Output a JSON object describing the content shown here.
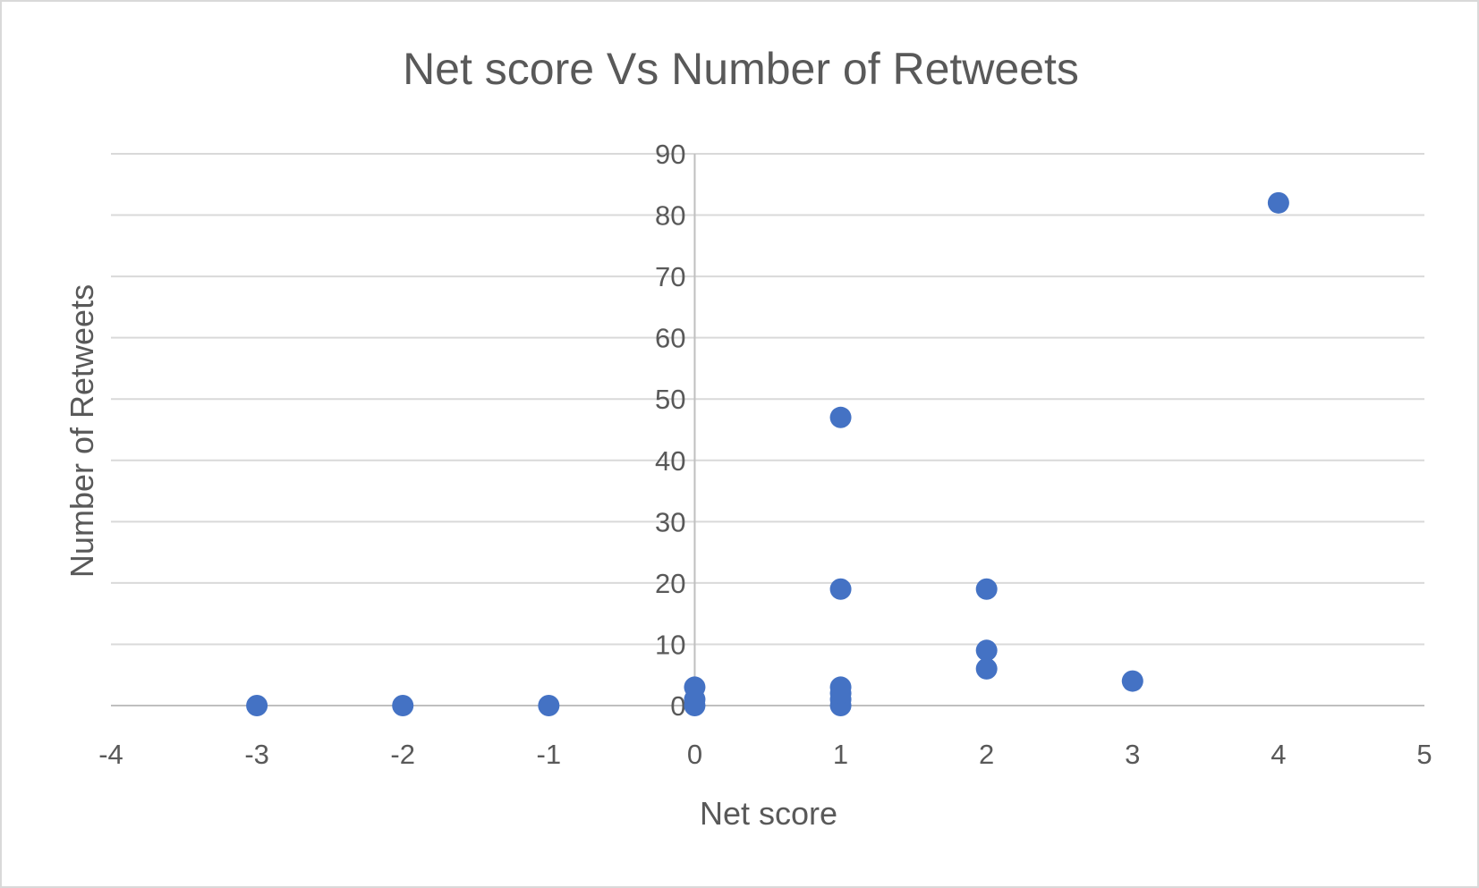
{
  "chart_data": {
    "type": "scatter",
    "title": "Net score Vs Number of Retweets",
    "xlabel": "Net score",
    "ylabel": "Number of Retweets",
    "xlim": [
      -4,
      5
    ],
    "ylim": [
      0,
      90
    ],
    "x_ticks": [
      -4,
      -3,
      -2,
      -1,
      0,
      1,
      2,
      3,
      4,
      5
    ],
    "y_ticks": [
      0,
      10,
      20,
      30,
      40,
      50,
      60,
      70,
      80,
      90
    ],
    "grid": "horizontal",
    "legend": "none",
    "marker_color": "#4472c4",
    "series": [
      {
        "points": [
          {
            "x": -3,
            "y": 0
          },
          {
            "x": -2,
            "y": 0
          },
          {
            "x": -1,
            "y": 0
          },
          {
            "x": 0,
            "y": 0
          },
          {
            "x": 0,
            "y": 1
          },
          {
            "x": 0,
            "y": 3
          },
          {
            "x": 1,
            "y": 0
          },
          {
            "x": 1,
            "y": 1
          },
          {
            "x": 1,
            "y": 2
          },
          {
            "x": 1,
            "y": 3
          },
          {
            "x": 1,
            "y": 19
          },
          {
            "x": 1,
            "y": 47
          },
          {
            "x": 2,
            "y": 6
          },
          {
            "x": 2,
            "y": 9
          },
          {
            "x": 2,
            "y": 19
          },
          {
            "x": 3,
            "y": 4
          },
          {
            "x": 4,
            "y": 82
          }
        ]
      }
    ]
  }
}
